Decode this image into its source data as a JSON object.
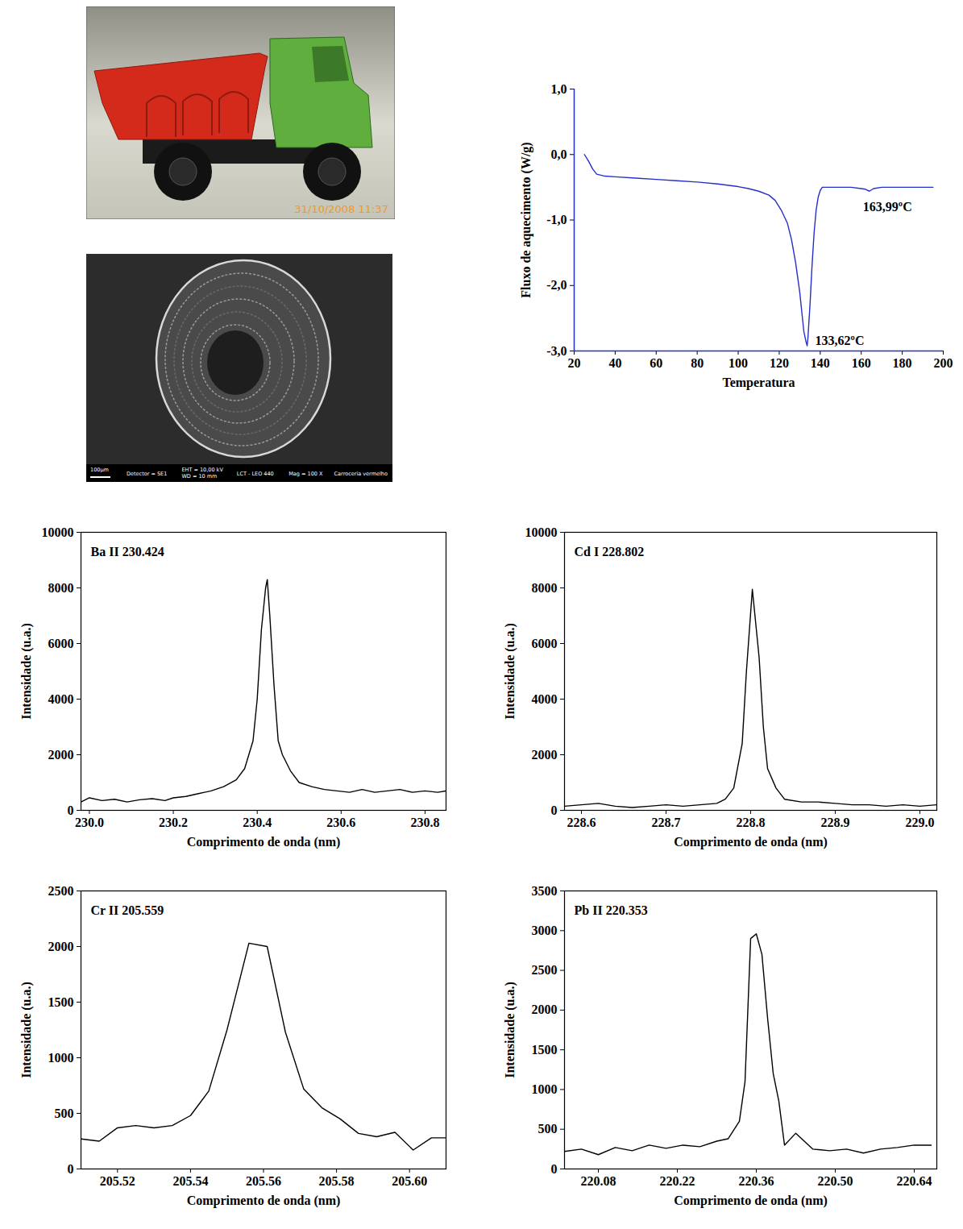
{
  "images": [
    {
      "type": "photo",
      "stamp": "31/10/2008  11:37"
    },
    {
      "type": "micrograph",
      "scale_bar": "100µm",
      "info": [
        "Detector = SE1",
        [
          "EHT = 10,00 kV",
          "WD = 10 mm"
        ],
        "LCT - LEO 440",
        "Mag = 100 X",
        "Carroceria vermelho"
      ]
    }
  ],
  "chart_data": [
    {
      "type": "line",
      "color": "#2430c8",
      "xlabel": "Temperatura",
      "ylabel": "Fluxo de aquecimento (W/g)",
      "xlim": [
        20,
        200
      ],
      "xticks": [
        20,
        40,
        60,
        80,
        100,
        120,
        140,
        160,
        180,
        200
      ],
      "ylim": [
        -3,
        1
      ],
      "yticks": [
        {
          "value": -3,
          "label": "-3,0"
        },
        {
          "value": -2,
          "label": "-2,0"
        },
        {
          "value": -1,
          "label": "-1,0"
        },
        {
          "value": 0,
          "label": "0,0"
        },
        {
          "value": 1,
          "label": "1,0"
        }
      ],
      "x": [
        25,
        27,
        29,
        31,
        35,
        40,
        50,
        60,
        70,
        80,
        90,
        100,
        105,
        110,
        115,
        118,
        121,
        124,
        126,
        128,
        130,
        131,
        132,
        133,
        133.62,
        134,
        135,
        136,
        137,
        138,
        139,
        140,
        141,
        143,
        146,
        150,
        155,
        160,
        162,
        163.99,
        166,
        170,
        180,
        190,
        195
      ],
      "values": [
        0.0,
        -0.1,
        -0.22,
        -0.3,
        -0.33,
        -0.34,
        -0.36,
        -0.38,
        -0.4,
        -0.42,
        -0.45,
        -0.49,
        -0.52,
        -0.56,
        -0.62,
        -0.7,
        -0.85,
        -1.05,
        -1.3,
        -1.65,
        -2.1,
        -2.4,
        -2.7,
        -2.85,
        -2.92,
        -2.8,
        -2.3,
        -1.7,
        -1.2,
        -0.85,
        -0.65,
        -0.55,
        -0.5,
        -0.5,
        -0.5,
        -0.5,
        -0.5,
        -0.52,
        -0.53,
        -0.56,
        -0.52,
        -0.5,
        -0.5,
        -0.5,
        -0.5
      ],
      "annotations": [
        {
          "text": "133,62ºC",
          "x": 133.62,
          "y": -2.92
        },
        {
          "text": "163,99ºC",
          "x": 163.99,
          "y": -0.56
        }
      ]
    },
    {
      "type": "line",
      "color": "#000000",
      "title": "Ba II 230.424",
      "xlabel": "Comprimento de onda (nm)",
      "ylabel": "Intensidade (u.a.)",
      "xlim": [
        229.98,
        230.85
      ],
      "xticks": [
        {
          "value": 230.0,
          "label": "230.0"
        },
        230.2,
        230.4,
        230.6,
        230.8
      ],
      "ylim": [
        0,
        10000
      ],
      "yticks": [
        0,
        2000,
        4000,
        6000,
        8000,
        10000
      ],
      "x": [
        229.98,
        230.0,
        230.03,
        230.06,
        230.09,
        230.12,
        230.15,
        230.18,
        230.2,
        230.23,
        230.26,
        230.29,
        230.32,
        230.35,
        230.37,
        230.39,
        230.4,
        230.41,
        230.42,
        230.424,
        230.43,
        230.44,
        230.45,
        230.46,
        230.48,
        230.5,
        230.53,
        230.56,
        230.59,
        230.62,
        230.65,
        230.68,
        230.71,
        230.74,
        230.77,
        230.8,
        230.83,
        230.85
      ],
      "values": [
        300,
        450,
        350,
        400,
        300,
        380,
        420,
        350,
        450,
        500,
        600,
        700,
        850,
        1100,
        1500,
        2500,
        4000,
        6500,
        8000,
        8300,
        7000,
        4500,
        2500,
        2000,
        1400,
        1000,
        850,
        750,
        700,
        650,
        750,
        650,
        700,
        750,
        650,
        700,
        650,
        700
      ]
    },
    {
      "type": "line",
      "color": "#000000",
      "title": "Cd I 228.802",
      "xlabel": "Comprimento de onda (nm)",
      "ylabel": "Intensidade (u.a.)",
      "xlim": [
        228.58,
        229.02
      ],
      "xticks": [
        228.6,
        228.7,
        228.8,
        228.9,
        {
          "value": 229.0,
          "label": "229.0"
        }
      ],
      "ylim": [
        0,
        10000
      ],
      "yticks": [
        0,
        2000,
        4000,
        6000,
        8000,
        10000
      ],
      "x": [
        228.58,
        228.6,
        228.62,
        228.64,
        228.66,
        228.68,
        228.7,
        228.72,
        228.74,
        228.76,
        228.77,
        228.78,
        228.79,
        228.795,
        228.802,
        228.81,
        228.815,
        228.82,
        228.83,
        228.84,
        228.86,
        228.88,
        228.9,
        228.92,
        228.94,
        228.96,
        228.98,
        229.0,
        229.02
      ],
      "values": [
        150,
        200,
        250,
        150,
        100,
        150,
        200,
        150,
        200,
        250,
        400,
        800,
        2400,
        5000,
        7950,
        5500,
        3000,
        1500,
        800,
        400,
        300,
        300,
        250,
        200,
        200,
        150,
        200,
        150,
        200
      ]
    },
    {
      "type": "line",
      "color": "#000000",
      "title": "Cr II 205.559",
      "xlabel": "Comprimento de onda (nm)",
      "ylabel": "Intensidade (u.a.)",
      "xlim": [
        205.51,
        205.61
      ],
      "xticks": [
        205.52,
        205.54,
        205.56,
        205.58,
        {
          "value": 205.6,
          "label": "205.60"
        }
      ],
      "ylim": [
        0,
        2500
      ],
      "yticks": [
        0,
        500,
        1000,
        1500,
        2000,
        2500
      ],
      "x": [
        205.51,
        205.515,
        205.52,
        205.525,
        205.53,
        205.535,
        205.54,
        205.545,
        205.55,
        205.556,
        205.561,
        205.566,
        205.571,
        205.576,
        205.581,
        205.586,
        205.591,
        205.596,
        205.601,
        205.606,
        205.61
      ],
      "values": [
        270,
        250,
        370,
        390,
        370,
        390,
        480,
        700,
        1250,
        2030,
        2000,
        1230,
        720,
        550,
        450,
        320,
        290,
        330,
        170,
        280,
        280
      ]
    },
    {
      "type": "line",
      "color": "#000000",
      "title": "Pb II 220.353",
      "xlabel": "Comprimento de onda (nm)",
      "ylabel": "Intensidade (u.a.)",
      "xlim": [
        220.02,
        220.68
      ],
      "xticks": [
        220.08,
        220.22,
        220.36,
        {
          "value": 220.5,
          "label": "220.50"
        },
        220.64
      ],
      "ylim": [
        0,
        3500
      ],
      "yticks": [
        0,
        500,
        1000,
        1500,
        2000,
        2500,
        3000,
        3500
      ],
      "x": [
        220.02,
        220.05,
        220.08,
        220.11,
        220.14,
        220.17,
        220.2,
        220.23,
        220.26,
        220.29,
        220.31,
        220.33,
        220.34,
        220.35,
        220.36,
        220.37,
        220.38,
        220.39,
        220.4,
        220.41,
        220.43,
        220.46,
        220.49,
        220.52,
        220.55,
        220.58,
        220.61,
        220.64,
        220.67
      ],
      "values": [
        220,
        250,
        180,
        270,
        230,
        300,
        260,
        300,
        280,
        350,
        380,
        600,
        1100,
        2900,
        2960,
        2700,
        1900,
        1200,
        850,
        300,
        450,
        250,
        230,
        250,
        200,
        250,
        270,
        300,
        300
      ]
    }
  ]
}
